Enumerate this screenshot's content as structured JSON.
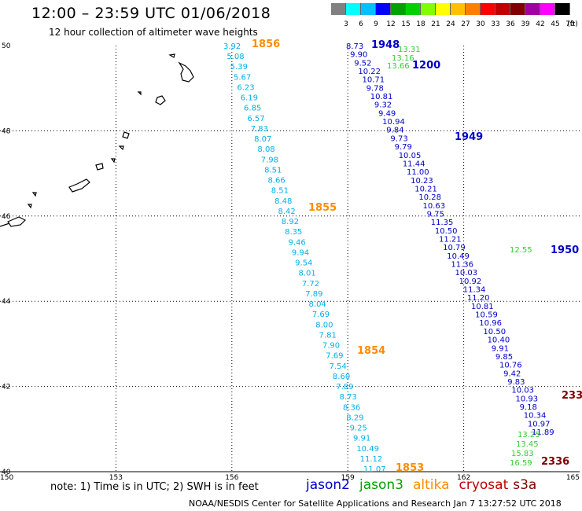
{
  "header": {
    "title": "12:00 – 23:59 UTC 01/06/2018",
    "subtitle": "12 hour collection of altimeter wave heights"
  },
  "colorbar": {
    "colors": [
      "#808080",
      "#00ffff",
      "#00c0ff",
      "#0000ff",
      "#00a000",
      "#00d000",
      "#80ff00",
      "#ffff00",
      "#ffc000",
      "#ff8000",
      "#ff0000",
      "#c00000",
      "#800000",
      "#a000a0",
      "#ff00ff",
      "#000000"
    ],
    "labels": [
      "3",
      "6",
      "9",
      "12",
      "15",
      "18",
      "21",
      "24",
      "27",
      "30",
      "33",
      "36",
      "39",
      "42",
      "45",
      "70",
      "(ft)"
    ]
  },
  "map": {
    "lat_labels": [
      "50",
      "48",
      "46",
      "44",
      "42",
      "40"
    ],
    "lon_labels": [
      "150",
      "153",
      "156",
      "159",
      "162",
      "165"
    ],
    "land_color": "#000000"
  },
  "tracks": [
    {
      "sat": "altika",
      "color": "#00b0e8",
      "values": [
        "3.92",
        "5.08",
        "5.39",
        "5.67",
        "6.23",
        "6.19",
        "6.85",
        "6.57",
        "7.83",
        "8.07",
        "8.08",
        "7.98",
        "8.51",
        "8.66",
        "8.51",
        "8.48",
        "8.42",
        "8.92",
        "8.35",
        "9.46",
        "9.94",
        "9.54",
        "8.01",
        "7.72",
        "7.89",
        "8.04",
        "7.69",
        "8.00",
        "7.81",
        "7.90",
        "7.69",
        "7.54",
        "8.60",
        "7.89",
        "8.73",
        "8.36",
        "8.29",
        "9.25",
        "9.91",
        "10.49",
        "11.12",
        "11.07"
      ]
    },
    {
      "sat": "jason2",
      "color": "#0000c8",
      "values": [
        "8.73",
        "9.90",
        "9.52",
        "10.22",
        "10.71",
        "9.78",
        "10.81",
        "9.32",
        "9.49",
        "10.94",
        "9.84",
        "9.73",
        "9.79",
        "10.05",
        "11.44",
        "11.00",
        "10.23",
        "10.21",
        "10.28",
        "10.63",
        "9.75",
        "11.35",
        "10.50",
        "11.21",
        "10.79",
        "10.49",
        "11.36",
        "10.03",
        "10.92",
        "11.34",
        "11.20",
        "10.81",
        "10.59",
        "10.96",
        "10.50",
        "10.40",
        "9.91",
        "9.85",
        "10.76",
        "9.42",
        "9.83",
        "10.03",
        "10.93",
        "9.18",
        "10.34",
        "10.97",
        "11.89"
      ]
    },
    {
      "sat": "jason3",
      "color": "#33cc33",
      "values": [
        "13.31",
        "13.16",
        "13.66",
        "12.55",
        "13.25",
        "13.45",
        "15.83",
        "16.59"
      ]
    }
  ],
  "time_labels": [
    {
      "text": "1856",
      "color": "#ff8c00"
    },
    {
      "text": "1948",
      "color": "#0000c8"
    },
    {
      "text": "1200",
      "color": "#0000c8"
    },
    {
      "text": "1949",
      "color": "#0000c8"
    },
    {
      "text": "1855",
      "color": "#ff8c00"
    },
    {
      "text": "1950",
      "color": "#0000c8"
    },
    {
      "text": "1854",
      "color": "#ff8c00"
    },
    {
      "text": "233",
      "color": "#800000"
    },
    {
      "text": "2336",
      "color": "#800000"
    },
    {
      "text": "1853",
      "color": "#ff8c00"
    }
  ],
  "note": "note: 1) Time is in UTC; 2) SWH is in feet",
  "legend": [
    {
      "name": "jason2",
      "color": "#0000c8"
    },
    {
      "name": "jason3",
      "color": "#00a000"
    },
    {
      "name": "altika",
      "color": "#ff8c00"
    },
    {
      "name": "cryosat",
      "color": "#c00000"
    },
    {
      "name": "s3a",
      "color": "#800000"
    }
  ],
  "footer": "NOAA/NESDIS Center for Satellite Applications and Research   Jan  7 13:27:52 UTC 2018"
}
